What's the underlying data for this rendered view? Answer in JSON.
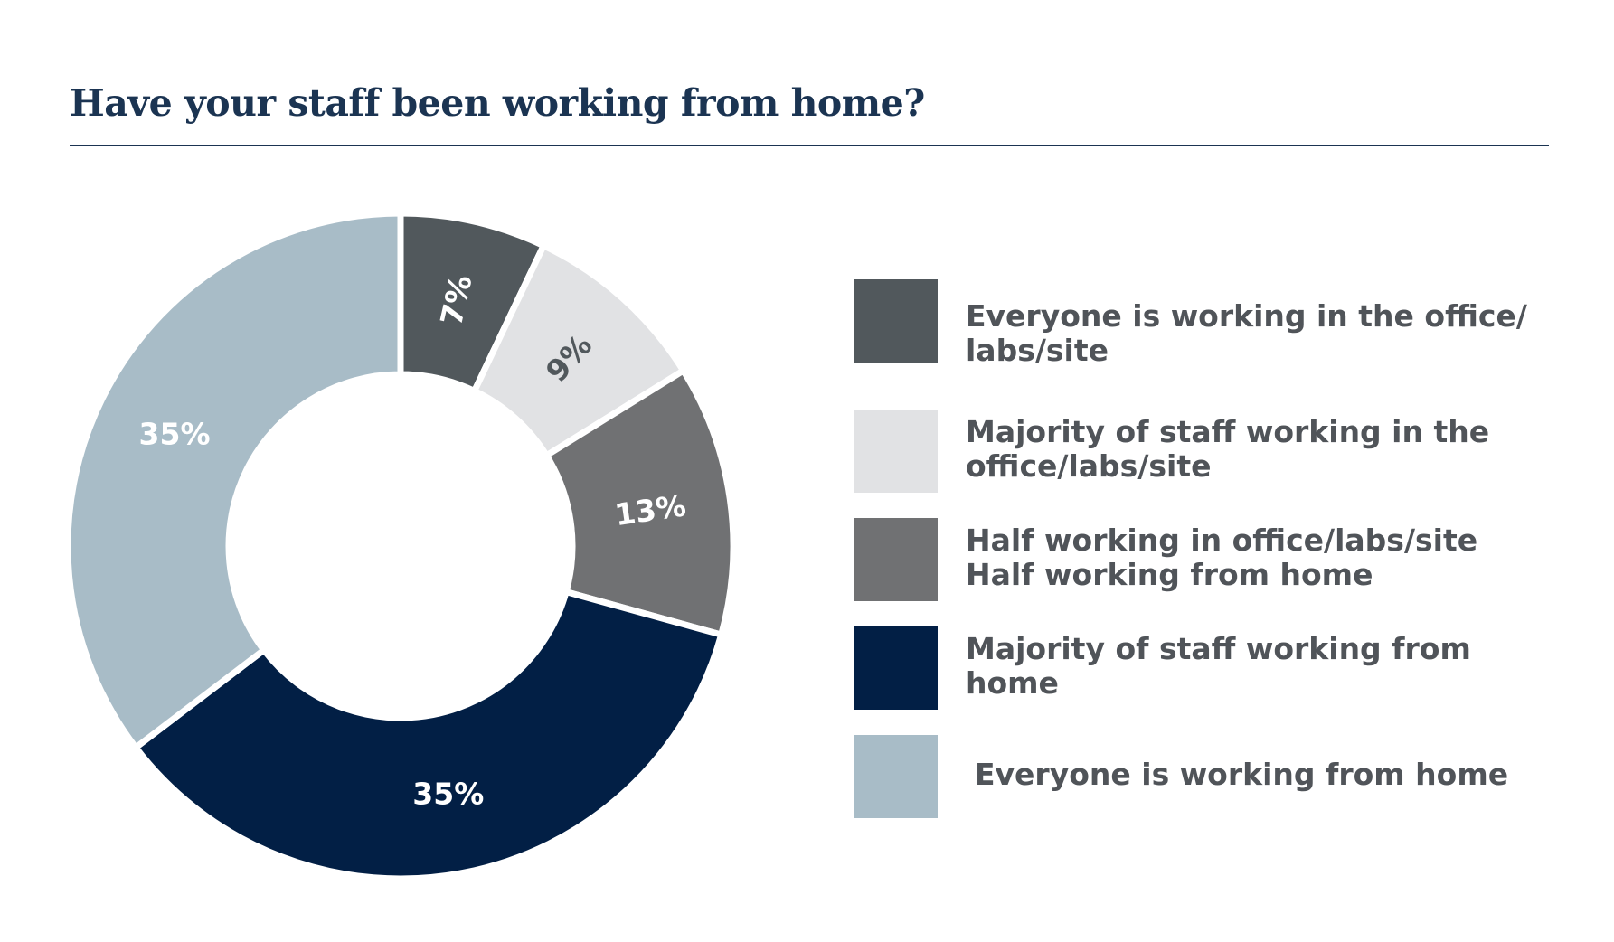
{
  "chart_data": {
    "type": "pie",
    "title": "Have your staff been working from home?",
    "categories": [
      "Everyone is working in the office/\nlabs/site",
      "Majority of staff working in the\noffice/labs/site",
      "Half working in office/labs/site\nHalf working from home",
      "Majority of staff working from\nhome",
      "Everyone is working from home"
    ],
    "values": [
      7,
      9,
      13,
      35,
      35
    ],
    "value_labels": [
      "7%",
      "9%",
      "13%",
      "35%",
      "35%"
    ],
    "colors": [
      "#51585c",
      "#e1e2e4",
      "#707173",
      "#021f45",
      "#a8bcc7"
    ],
    "label_colors": [
      "#ffffff",
      "#51585c",
      "#ffffff",
      "#ffffff",
      "#ffffff"
    ],
    "donut": true,
    "legend_position": "right"
  }
}
